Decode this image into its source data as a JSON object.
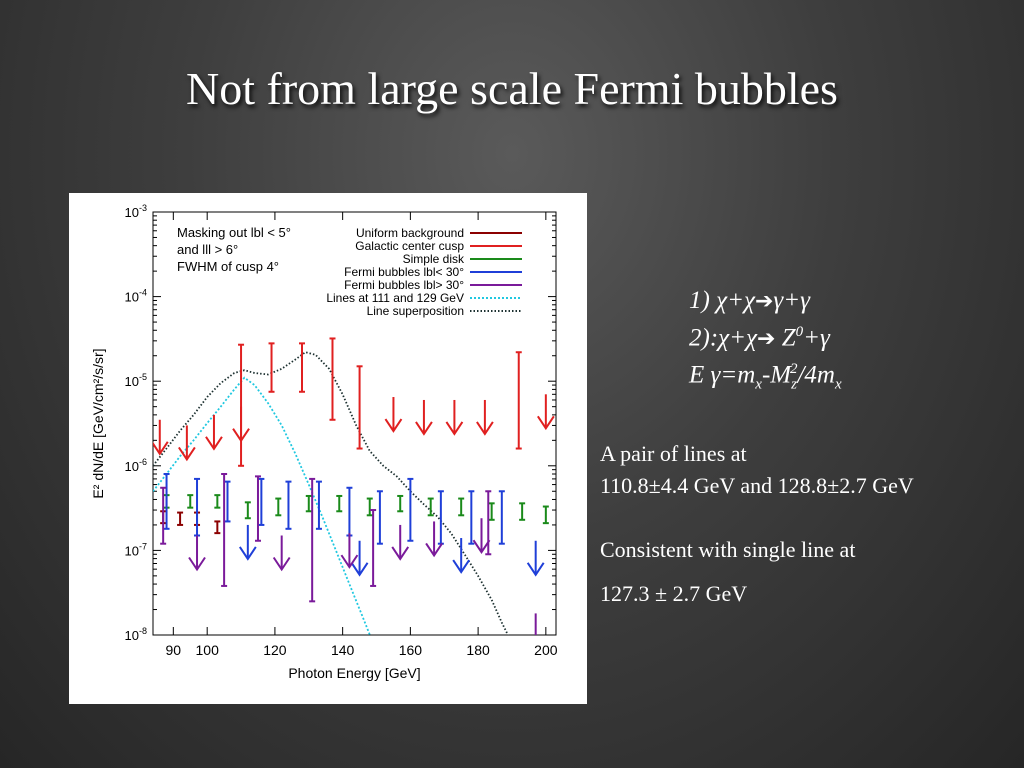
{
  "slide": {
    "title": "Not from large scale Fermi bubbles"
  },
  "equations": {
    "line1": {
      "prefix": "1) χ+χ",
      "arrow": "➔",
      "suffix": "γ+γ"
    },
    "line2": {
      "prefix": "2):χ+χ",
      "arrow": "➔",
      "mid": " Z",
      "sup": "0",
      "suffix": "+γ"
    },
    "line3": {
      "a": "E γ=m",
      "sub1": "x",
      "b": "-M",
      "sub2": "z",
      "sup": "2",
      "c": "/4m",
      "sub3": "x"
    }
  },
  "text": {
    "pair_line1": "A pair of lines at",
    "pair_line2": "110.8±4.4 GeV and 128.8±2.7 GeV",
    "consistent": "Consistent with single line at",
    "value": "127.3 ± 2.7 GeV"
  },
  "chart_data": {
    "type": "scatter",
    "xlabel": "Photon Energy [GeV]",
    "ylabel": "E² dN/dE [GeV/cm²/s/sr]",
    "xlim": [
      84,
      203
    ],
    "ylim": [
      1e-08,
      0.001
    ],
    "yscale": "log",
    "x_ticks": [
      90,
      100,
      120,
      140,
      160,
      180,
      200
    ],
    "y_ticks": [
      {
        "value": 0.001,
        "label": "10",
        "exp": "-3"
      },
      {
        "value": 0.0001,
        "label": "10",
        "exp": "-4"
      },
      {
        "value": 1e-05,
        "label": "10",
        "exp": "-5"
      },
      {
        "value": 1e-06,
        "label": "10",
        "exp": "-6"
      },
      {
        "value": 1e-07,
        "label": "10",
        "exp": "-7"
      },
      {
        "value": 1e-08,
        "label": "10",
        "exp": "-8"
      }
    ],
    "annotation": [
      "Masking out lbl < 5°",
      "and lll > 6°",
      "FWHM of cusp 4°"
    ],
    "legend_position": "top-right",
    "series": [
      {
        "name": "Uniform background",
        "color": "#8b0000",
        "kind": "points",
        "points": [
          {
            "x": 87,
            "y": 2.5e-07,
            "lo": 2.1e-07,
            "hi": 2.9e-07
          },
          {
            "x": 92,
            "y": 2.4e-07,
            "lo": 2e-07,
            "hi": 2.8e-07
          },
          {
            "x": 97,
            "y": 2.4e-07,
            "lo": 2e-07,
            "hi": 2.8e-07
          },
          {
            "x": 103,
            "y": 1.9e-07,
            "lo": 1.6e-07,
            "hi": 2.2e-07
          }
        ]
      },
      {
        "name": "Galactic center cusp",
        "color": "#e02020",
        "kind": "points",
        "points": [
          {
            "x": 110,
            "y": 1.2e-05,
            "lo": 1e-06,
            "hi": 2.7e-05
          },
          {
            "x": 119,
            "y": 2e-05,
            "lo": 7.5e-06,
            "hi": 2.8e-05
          },
          {
            "x": 128,
            "y": 2e-05,
            "lo": 7.5e-06,
            "hi": 2.8e-05
          },
          {
            "x": 137,
            "y": 2.5e-05,
            "lo": 3.5e-06,
            "hi": 3.2e-05
          },
          {
            "x": 145,
            "y": 8e-06,
            "lo": 1.6e-06,
            "hi": 1.5e-05
          },
          {
            "x": 192,
            "y": 1.2e-05,
            "lo": 1.6e-06,
            "hi": 2.2e-05
          }
        ],
        "limits": [
          {
            "x": 86,
            "y": 3.5e-06
          },
          {
            "x": 94,
            "y": 3e-06
          },
          {
            "x": 102,
            "y": 4e-06
          },
          {
            "x": 110,
            "y": 5e-06
          },
          {
            "x": 155,
            "y": 6.5e-06
          },
          {
            "x": 164,
            "y": 6e-06
          },
          {
            "x": 173,
            "y": 6e-06
          },
          {
            "x": 182,
            "y": 6e-06
          },
          {
            "x": 200,
            "y": 7e-06
          }
        ]
      },
      {
        "name": "Simple disk",
        "color": "#1a8a1a",
        "kind": "points",
        "points": [
          {
            "x": 88,
            "y": 3.8e-07,
            "lo": 3.2e-07,
            "hi": 4.5e-07
          },
          {
            "x": 95,
            "y": 3.8e-07,
            "lo": 3.2e-07,
            "hi": 4.5e-07
          },
          {
            "x": 103,
            "y": 3.8e-07,
            "lo": 3.2e-07,
            "hi": 4.5e-07
          },
          {
            "x": 112,
            "y": 3e-07,
            "lo": 2.4e-07,
            "hi": 3.7e-07
          },
          {
            "x": 121,
            "y": 3.3e-07,
            "lo": 2.6e-07,
            "hi": 4.1e-07
          },
          {
            "x": 130,
            "y": 3.6e-07,
            "lo": 2.9e-07,
            "hi": 4.4e-07
          },
          {
            "x": 139,
            "y": 3.6e-07,
            "lo": 2.9e-07,
            "hi": 4.4e-07
          },
          {
            "x": 148,
            "y": 3.3e-07,
            "lo": 2.6e-07,
            "hi": 4.1e-07
          },
          {
            "x": 157,
            "y": 3.6e-07,
            "lo": 2.9e-07,
            "hi": 4.4e-07
          },
          {
            "x": 166,
            "y": 3.3e-07,
            "lo": 2.6e-07,
            "hi": 4.1e-07
          },
          {
            "x": 175,
            "y": 3.3e-07,
            "lo": 2.6e-07,
            "hi": 4.1e-07
          },
          {
            "x": 184,
            "y": 2.9e-07,
            "lo": 2.3e-07,
            "hi": 3.6e-07
          },
          {
            "x": 193,
            "y": 2.9e-07,
            "lo": 2.3e-07,
            "hi": 3.6e-07
          },
          {
            "x": 200,
            "y": 2.7e-07,
            "lo": 2.1e-07,
            "hi": 3.3e-07
          }
        ]
      },
      {
        "name": "Fermi bubbles lbl< 30°",
        "color": "#1f3fd8",
        "kind": "points",
        "points": [
          {
            "x": 88,
            "y": 5e-07,
            "lo": 1.8e-07,
            "hi": 8e-07
          },
          {
            "x": 97,
            "y": 4e-07,
            "lo": 1.5e-07,
            "hi": 7e-07
          },
          {
            "x": 106,
            "y": 4e-07,
            "lo": 2.2e-07,
            "hi": 6.5e-07
          },
          {
            "x": 116,
            "y": 4e-07,
            "lo": 2e-07,
            "hi": 7e-07
          },
          {
            "x": 124,
            "y": 4e-07,
            "lo": 1.8e-07,
            "hi": 6.5e-07
          },
          {
            "x": 133,
            "y": 4e-07,
            "lo": 1.8e-07,
            "hi": 6.5e-07
          },
          {
            "x": 142,
            "y": 3.5e-07,
            "lo": 1.5e-07,
            "hi": 5.5e-07
          },
          {
            "x": 151,
            "y": 3e-07,
            "lo": 1.2e-07,
            "hi": 5e-07
          },
          {
            "x": 160,
            "y": 4e-07,
            "lo": 1.3e-07,
            "hi": 7e-07
          },
          {
            "x": 169,
            "y": 3e-07,
            "lo": 1.2e-07,
            "hi": 5e-07
          },
          {
            "x": 178,
            "y": 3e-07,
            "lo": 1.2e-07,
            "hi": 5e-07
          },
          {
            "x": 187,
            "y": 3e-07,
            "lo": 1.2e-07,
            "hi": 5e-07
          }
        ],
        "limits": [
          {
            "x": 112,
            "y": 2e-07
          },
          {
            "x": 145,
            "y": 1.3e-07
          },
          {
            "x": 175,
            "y": 1.4e-07
          },
          {
            "x": 197,
            "y": 1.3e-07
          }
        ]
      },
      {
        "name": "Fermi bubbles lbl> 30°",
        "color": "#7a1a9a",
        "kind": "points",
        "points": [
          {
            "x": 87,
            "y": 2.5e-07,
            "lo": 1.2e-07,
            "hi": 5.5e-07
          },
          {
            "x": 105,
            "y": 2.5e-07,
            "lo": 3.8e-08,
            "hi": 8e-07
          },
          {
            "x": 115,
            "y": 4e-07,
            "lo": 1.3e-07,
            "hi": 7.5e-07
          },
          {
            "x": 131,
            "y": 2.5e-07,
            "lo": 2.5e-08,
            "hi": 7e-07
          },
          {
            "x": 149,
            "y": 2e-07,
            "lo": 3.8e-08,
            "hi": 3e-07
          },
          {
            "x": 183,
            "y": 2.5e-07,
            "lo": 9e-08,
            "hi": 5e-07
          }
        ],
        "limits": [
          {
            "x": 97,
            "y": 1.5e-07
          },
          {
            "x": 122,
            "y": 1.5e-07
          },
          {
            "x": 142,
            "y": 1.6e-07
          },
          {
            "x": 157,
            "y": 2e-07
          },
          {
            "x": 167,
            "y": 2.2e-07
          },
          {
            "x": 181,
            "y": 2.4e-07
          },
          {
            "x": 197,
            "y": 1.8e-08
          }
        ]
      },
      {
        "name": "Lines at 111 and 129 GeV",
        "color": "#20c8e0",
        "kind": "line",
        "dash": "2,2",
        "points": [
          [
            84,
            5e-07
          ],
          [
            88,
            8e-07
          ],
          [
            92,
            1.3e-06
          ],
          [
            96,
            2e-06
          ],
          [
            100,
            3.2e-06
          ],
          [
            104,
            5e-06
          ],
          [
            108,
            8e-06
          ],
          [
            111,
            1.1e-05
          ],
          [
            114,
            9e-06
          ],
          [
            118,
            5.5e-06
          ],
          [
            122,
            3e-06
          ],
          [
            126,
            1.4e-06
          ],
          [
            130,
            6e-07
          ],
          [
            134,
            2.5e-07
          ],
          [
            138,
            1e-07
          ],
          [
            142,
            4e-08
          ],
          [
            146,
            1.6e-08
          ],
          [
            149,
            8e-09
          ]
        ]
      },
      {
        "name": "Line superposition",
        "color": "#1c3030",
        "kind": "line",
        "dash": "1.5,2",
        "points": [
          [
            84,
            1e-06
          ],
          [
            88,
            1.6e-06
          ],
          [
            92,
            2.6e-06
          ],
          [
            96,
            4e-06
          ],
          [
            100,
            6.5e-06
          ],
          [
            104,
            9.5e-06
          ],
          [
            108,
            1.25e-05
          ],
          [
            111,
            1.35e-05
          ],
          [
            114,
            1.25e-05
          ],
          [
            118,
            1.2e-05
          ],
          [
            122,
            1.4e-05
          ],
          [
            126,
            1.8e-05
          ],
          [
            129,
            2.2e-05
          ],
          [
            132,
            2.05e-05
          ],
          [
            136,
            1.4e-05
          ],
          [
            140,
            7e-06
          ],
          [
            144,
            3e-06
          ],
          [
            148,
            1.5e-06
          ],
          [
            152,
            1e-06
          ],
          [
            156,
            7.5e-07
          ],
          [
            160,
            5e-07
          ],
          [
            164,
            3.5e-07
          ],
          [
            168,
            2.5e-07
          ],
          [
            172,
            1.6e-07
          ],
          [
            176,
            9e-08
          ],
          [
            180,
            5e-08
          ],
          [
            184,
            2.6e-08
          ],
          [
            187,
            1.4e-08
          ],
          [
            190,
            8e-09
          ]
        ]
      }
    ]
  }
}
